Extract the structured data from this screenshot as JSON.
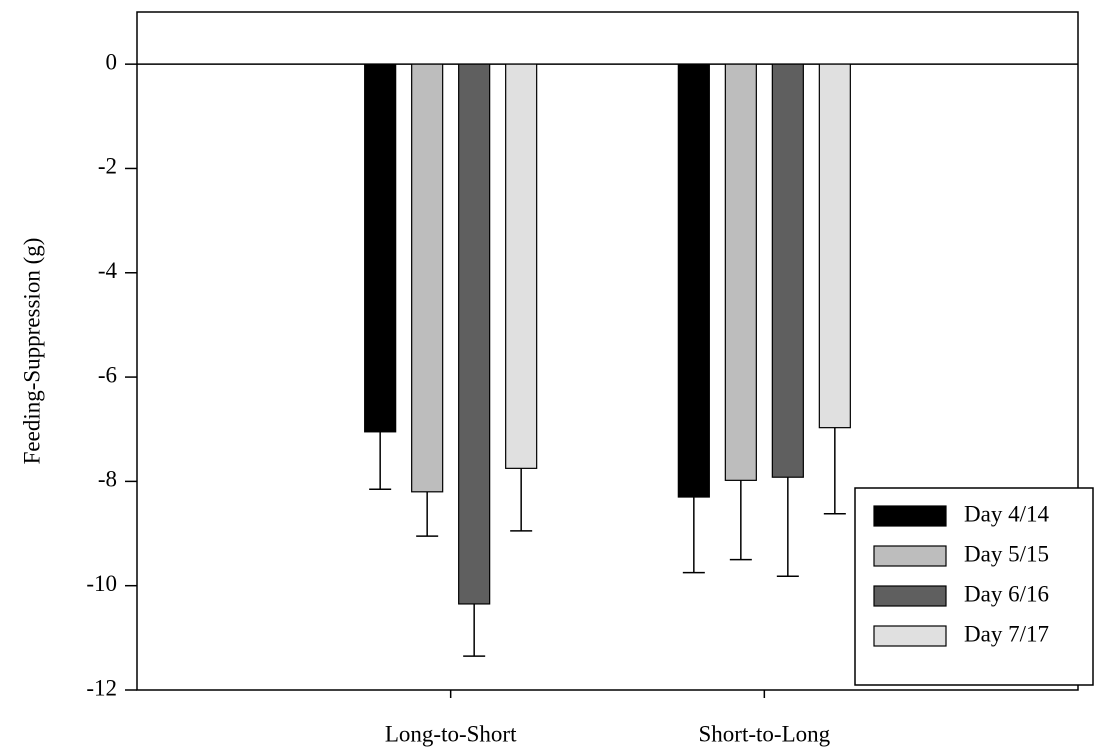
{
  "chart_data": {
    "type": "bar",
    "y_label": "Feeding-Suppression (g)",
    "categories": [
      "Long-to-Short",
      "Short-to-Long"
    ],
    "series": [
      {
        "name": "Day 4/14",
        "color": "#000000",
        "values": [
          -7.05,
          -8.3
        ],
        "errors": [
          1.1,
          1.45
        ]
      },
      {
        "name": "Day 5/15",
        "color": "#bdbdbd",
        "values": [
          -8.2,
          -7.98
        ],
        "errors": [
          0.85,
          1.52
        ]
      },
      {
        "name": "Day 6/16",
        "color": "#5f5f5f",
        "values": [
          -10.35,
          -7.92
        ],
        "errors": [
          1.0,
          1.9
        ]
      },
      {
        "name": "Day 7/17",
        "color": "#e0e0e0",
        "values": [
          -7.75,
          -6.97
        ],
        "errors": [
          1.2,
          1.65
        ]
      }
    ],
    "ylim": [
      -12,
      1
    ],
    "yticks": [
      0,
      -2,
      -4,
      -6,
      -8,
      -10,
      -12
    ],
    "legend": "lower-right"
  }
}
